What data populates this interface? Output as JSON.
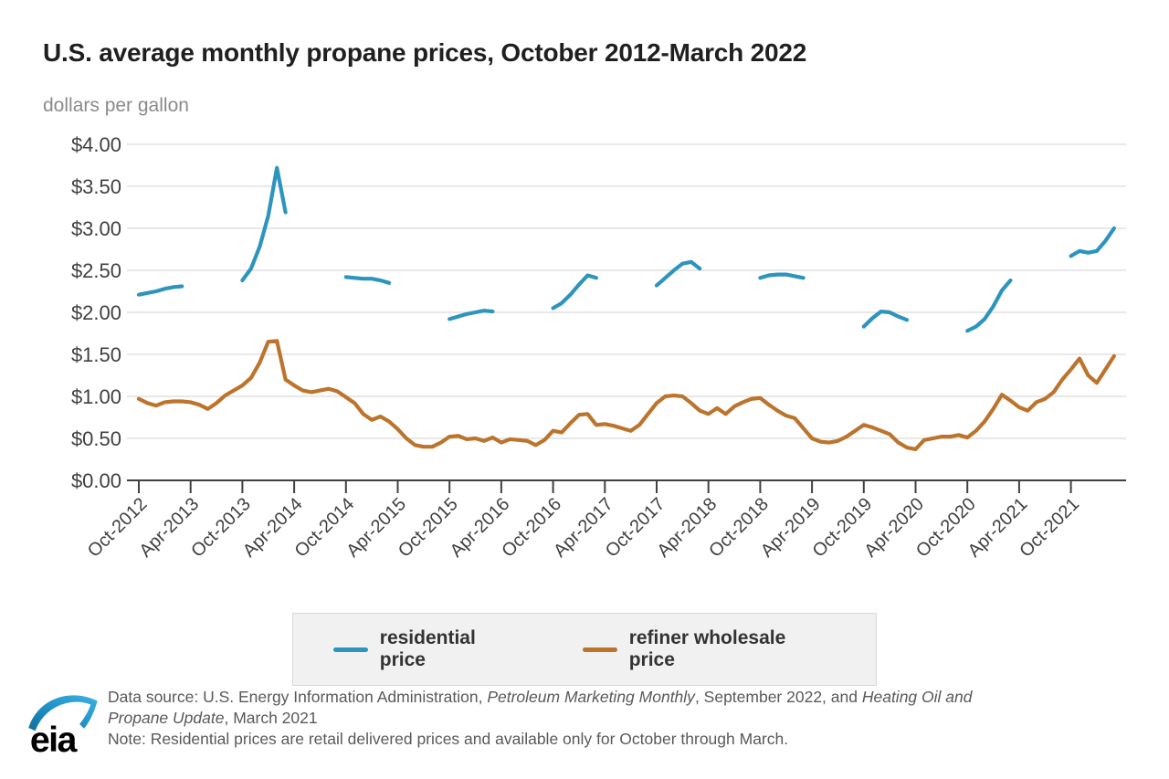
{
  "title": "U.S. average monthly propane prices, October 2012-March 2022",
  "subtitle": "dollars per gallon",
  "footer": {
    "logo_text": "eia",
    "lines": [
      [
        {
          "text": "Data source: U.S. Energy Information Administration, ",
          "italic": false
        },
        {
          "text": "Petroleum Marketing Monthly",
          "italic": true
        },
        {
          "text": ", September 2022, and ",
          "italic": false
        },
        {
          "text": "Heating Oil and",
          "italic": true
        }
      ],
      [
        {
          "text": "Propane Update",
          "italic": true
        },
        {
          "text": ", March 2021",
          "italic": false
        }
      ],
      [
        {
          "text": "Note: Residential prices are retail delivered prices and available only for October through March.",
          "italic": false
        }
      ]
    ]
  },
  "colors": {
    "residential": "#2D95BD",
    "wholesale": "#BC742C",
    "gridline": "#d9d9d9",
    "axis": "#404040",
    "tick_label": "#404040"
  },
  "chart_data": {
    "type": "line",
    "title": "U.S. average monthly propane prices, October 2012-March 2022",
    "ylabel": "dollars per gallon",
    "ylim": [
      0,
      4
    ],
    "y_tick_step": 0.5,
    "y_ticks": [
      "$4.00",
      "$3.50",
      "$3.00",
      "$2.50",
      "$2.00",
      "$1.50",
      "$1.00",
      "$0.50",
      "$0.00"
    ],
    "x_tick_labels": [
      "Oct-2012",
      "Apr-2013",
      "Oct-2013",
      "Apr-2014",
      "Oct-2014",
      "Apr-2015",
      "Oct-2015",
      "Apr-2016",
      "Oct-2016",
      "Apr-2017",
      "Oct-2017",
      "Apr-2018",
      "Oct-2018",
      "Apr-2019",
      "Oct-2019",
      "Apr-2020",
      "Oct-2020",
      "Apr-2021",
      "Oct-2021"
    ],
    "months_between_ticks": 6,
    "time_range": {
      "start": "Oct-2012",
      "end": "Mar-2022"
    },
    "grid": "horizontal",
    "legend_position": "bottom",
    "series": [
      {
        "name": "residential price",
        "color": "#2D95BD",
        "availability": "October through March only",
        "segments": [
          {
            "winter": "Oct 2012 - Mar 2013",
            "start_index": 0,
            "values": [
              2.21,
              2.23,
              2.25,
              2.28,
              2.3,
              2.31
            ]
          },
          {
            "winter": "Oct 2013 - Mar 2014",
            "start_index": 12,
            "values": [
              2.38,
              2.52,
              2.78,
              3.15,
              3.72,
              3.19
            ]
          },
          {
            "winter": "Oct 2014 - Mar 2015",
            "start_index": 24,
            "values": [
              2.42,
              2.41,
              2.4,
              2.4,
              2.38,
              2.35
            ]
          },
          {
            "winter": "Oct 2015 - Mar 2016",
            "start_index": 36,
            "values": [
              1.92,
              1.95,
              1.98,
              2.0,
              2.02,
              2.01
            ]
          },
          {
            "winter": "Oct 2016 - Mar 2017",
            "start_index": 48,
            "values": [
              2.05,
              2.11,
              2.21,
              2.33,
              2.44,
              2.41
            ]
          },
          {
            "winter": "Oct 2017 - Mar 2018",
            "start_index": 60,
            "values": [
              2.32,
              2.41,
              2.5,
              2.58,
              2.6,
              2.52
            ]
          },
          {
            "winter": "Oct 2018 - Mar 2019",
            "start_index": 72,
            "values": [
              2.41,
              2.44,
              2.45,
              2.45,
              2.43,
              2.41
            ]
          },
          {
            "winter": "Oct 2019 - Mar 2020",
            "start_index": 84,
            "values": [
              1.83,
              1.93,
              2.01,
              2.0,
              1.95,
              1.91
            ]
          },
          {
            "winter": "Oct 2020 - Mar 2021",
            "start_index": 96,
            "values": [
              1.78,
              1.83,
              1.92,
              2.07,
              2.26,
              2.38
            ]
          },
          {
            "winter": "Oct 2021 - Mar 2022",
            "start_index": 108,
            "values": [
              2.67,
              2.73,
              2.71,
              2.73,
              2.85,
              3.0
            ]
          }
        ]
      },
      {
        "name": "refiner wholesale price",
        "color": "#BC742C",
        "start": "Oct-2012",
        "monthly_values": [
          0.97,
          0.92,
          0.89,
          0.93,
          0.94,
          0.94,
          0.93,
          0.9,
          0.85,
          0.92,
          1.01,
          1.07,
          1.13,
          1.22,
          1.4,
          1.65,
          1.66,
          1.2,
          1.13,
          1.07,
          1.05,
          1.07,
          1.09,
          1.06,
          0.99,
          0.92,
          0.79,
          0.72,
          0.76,
          0.7,
          0.61,
          0.5,
          0.42,
          0.4,
          0.4,
          0.45,
          0.52,
          0.53,
          0.49,
          0.5,
          0.47,
          0.51,
          0.45,
          0.49,
          0.48,
          0.47,
          0.42,
          0.48,
          0.59,
          0.57,
          0.68,
          0.78,
          0.79,
          0.66,
          0.67,
          0.65,
          0.62,
          0.59,
          0.66,
          0.79,
          0.92,
          1.0,
          1.01,
          1.0,
          0.92,
          0.83,
          0.79,
          0.86,
          0.79,
          0.88,
          0.93,
          0.97,
          0.98,
          0.9,
          0.83,
          0.77,
          0.74,
          0.62,
          0.5,
          0.46,
          0.45,
          0.47,
          0.52,
          0.59,
          0.66,
          0.63,
          0.59,
          0.55,
          0.45,
          0.39,
          0.37,
          0.48,
          0.5,
          0.52,
          0.52,
          0.54,
          0.51,
          0.59,
          0.7,
          0.85,
          1.02,
          0.95,
          0.87,
          0.83,
          0.93,
          0.97,
          1.05,
          1.2,
          1.32,
          1.45,
          1.25,
          1.16,
          1.32,
          1.48
        ]
      }
    ]
  }
}
